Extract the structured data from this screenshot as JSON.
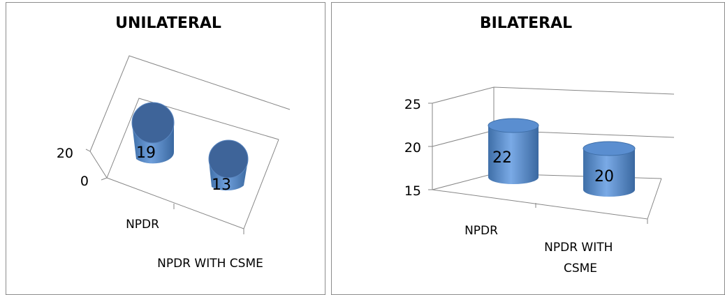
{
  "chart_data": [
    {
      "type": "bar",
      "title": "UNILATERAL",
      "categories": [
        "NPDR",
        "NPDR WITH CSME"
      ],
      "values": [
        19,
        13
      ],
      "y_ticks": [
        "20",
        "0"
      ],
      "style": "3d-cylinder",
      "color": "#4f81bd"
    },
    {
      "type": "bar",
      "title": "BILATERAL",
      "categories": [
        "NPDR",
        "NPDR WITH CSME"
      ],
      "values": [
        22,
        20
      ],
      "ylim": [
        15,
        25
      ],
      "y_ticks": [
        "25",
        "20",
        "15"
      ],
      "style": "3d-cylinder",
      "color": "#4f81bd"
    }
  ]
}
